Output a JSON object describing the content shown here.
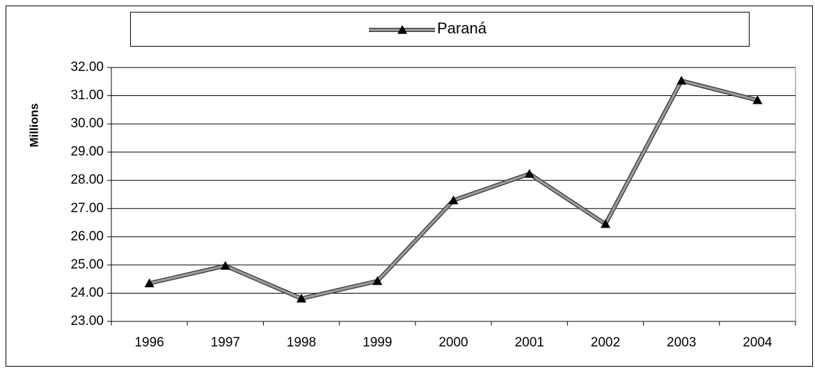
{
  "chart_data": {
    "type": "line",
    "y_label": "Millions",
    "categories": [
      "1996",
      "1997",
      "1998",
      "1999",
      "2000",
      "2001",
      "2002",
      "2003",
      "2004"
    ],
    "series": [
      {
        "name": "Paraná",
        "color": "#9a9a9a",
        "values": [
          24.35,
          24.97,
          23.81,
          24.43,
          27.29,
          28.23,
          26.45,
          31.53,
          30.84
        ]
      }
    ],
    "ylim": [
      23,
      32
    ],
    "yticks": [
      {
        "value": 23,
        "label": "23.00"
      },
      {
        "value": 24,
        "label": "24.00"
      },
      {
        "value": 25,
        "label": "25.00"
      },
      {
        "value": 26,
        "label": "26.00"
      },
      {
        "value": 27,
        "label": "27.00"
      },
      {
        "value": 28,
        "label": "28.00"
      },
      {
        "value": 29,
        "label": "29.00"
      },
      {
        "value": 30,
        "label": "30.00"
      },
      {
        "value": 31,
        "label": "31.00"
      },
      {
        "value": 32,
        "label": "32.00"
      }
    ],
    "grid": true,
    "legend": "top"
  }
}
